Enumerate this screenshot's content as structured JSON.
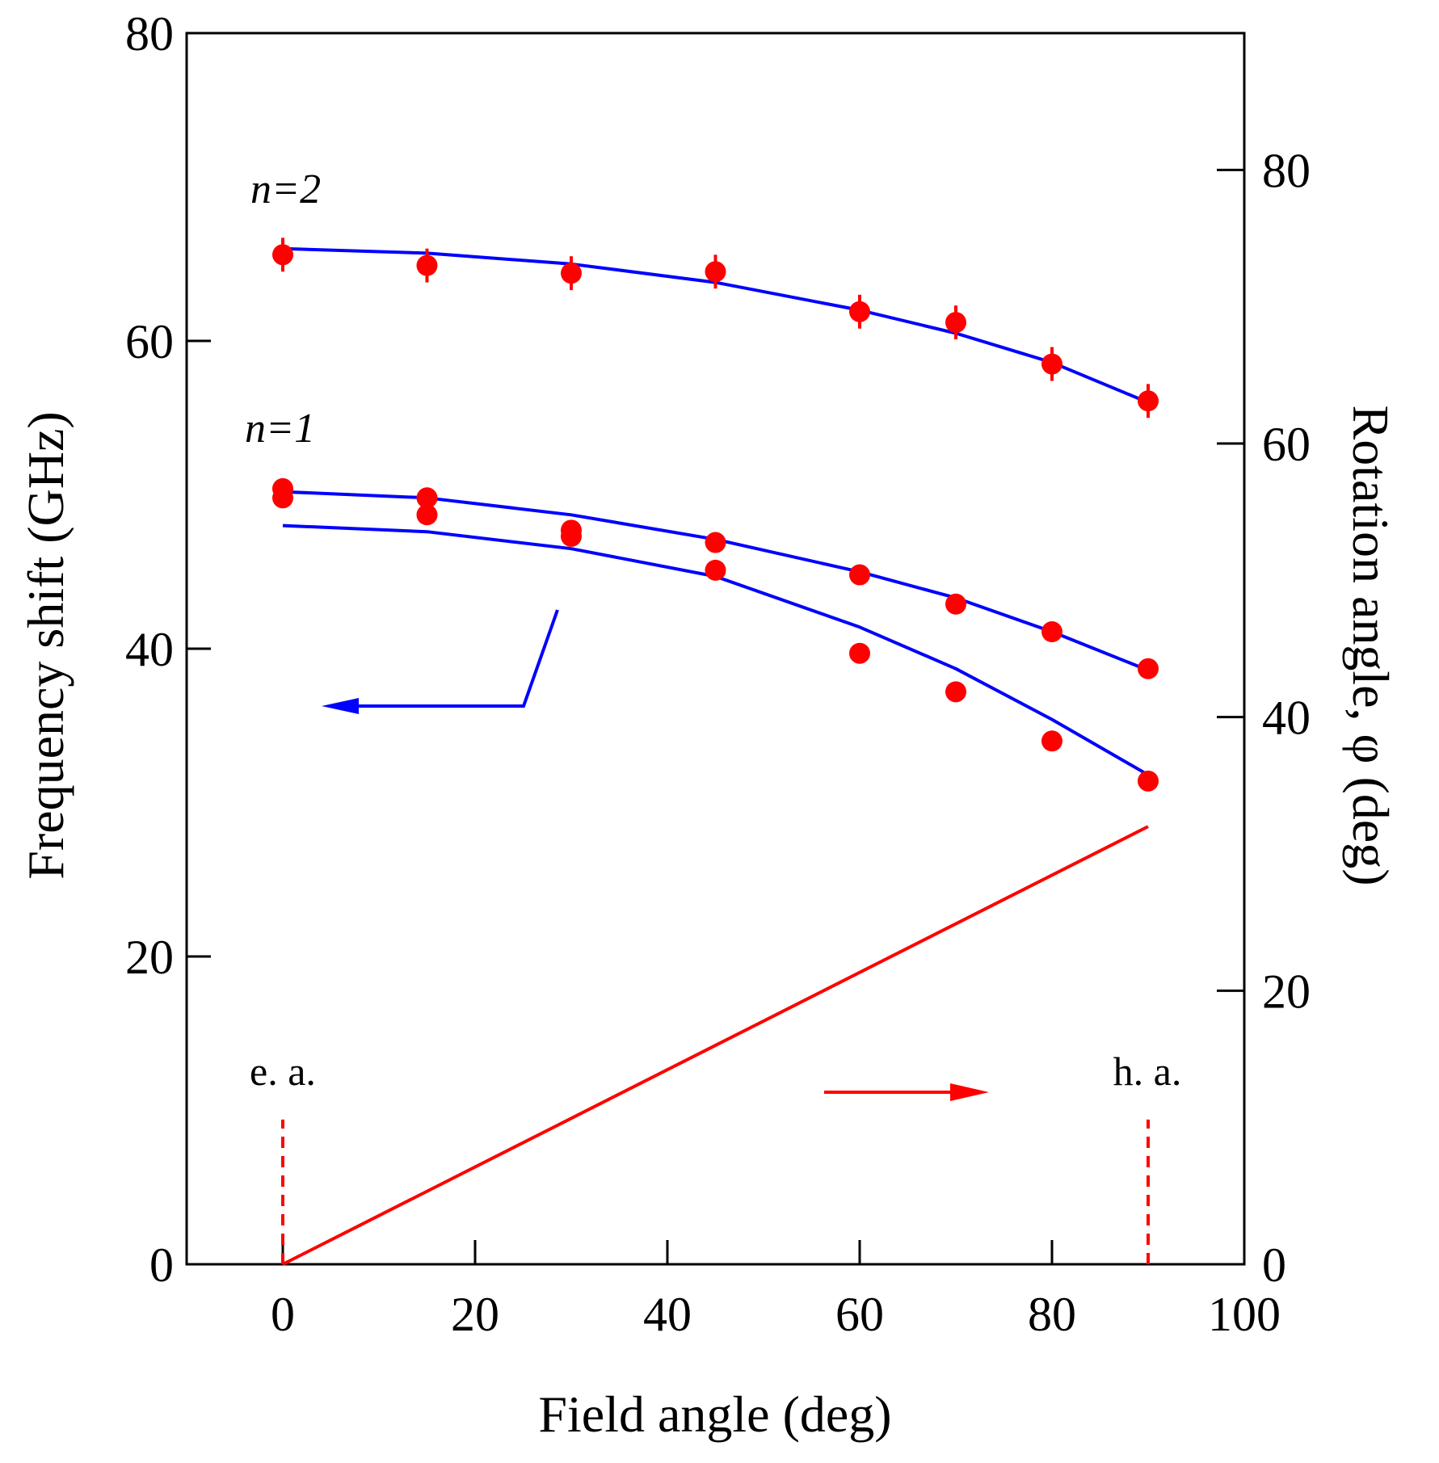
{
  "chart_data": {
    "type": "scatter",
    "title": "",
    "xlabel": "Field angle (deg)",
    "ylabel": "Frequency shift (GHz)",
    "y2label": "Rotation angle, φ (deg)",
    "xlim": [
      -10,
      100
    ],
    "ylim": [
      0,
      80
    ],
    "y2lim": [
      0,
      90
    ],
    "xticks": [
      0,
      20,
      40,
      60,
      80,
      100
    ],
    "yticks": [
      0,
      20,
      40,
      60,
      80
    ],
    "y2ticks": [
      0,
      20,
      40,
      60,
      80
    ],
    "colors": {
      "data": "#ff0000",
      "fit": "#0000ff",
      "rotation": "#ff0000",
      "axis": "#000000"
    },
    "labels": {
      "n2": "n=2",
      "n1": "n=1",
      "ea": "e. a.",
      "ha": "h. a."
    },
    "series": [
      {
        "name": "n=2 data",
        "axis": "left",
        "x": [
          0,
          15,
          30,
          45,
          60,
          70,
          80,
          90
        ],
        "y": [
          65.6,
          64.9,
          64.4,
          64.5,
          61.9,
          61.2,
          58.5,
          56.1
        ],
        "error": [
          1.1,
          1.1,
          1.1,
          1.1,
          1.1,
          1.1,
          1.1,
          1.1
        ]
      },
      {
        "name": "n=1 data (upper branch)",
        "axis": "left",
        "x": [
          0,
          15,
          30,
          45,
          60,
          70,
          80,
          90
        ],
        "y": [
          50.4,
          49.8,
          47.7,
          46.9,
          44.8,
          42.9,
          41.1,
          38.7
        ],
        "error": [
          0.5,
          0.5,
          0.5,
          0.5,
          0.5,
          0.5,
          0.5,
          0.5
        ]
      },
      {
        "name": "n=1 data (lower branch)",
        "axis": "left",
        "x": [
          0,
          15,
          30,
          45,
          60,
          70,
          80,
          90
        ],
        "y": [
          49.8,
          48.7,
          47.3,
          45.1,
          39.7,
          37.2,
          34.0,
          31.4
        ],
        "error": [
          0.5,
          0.5,
          0.5,
          0.5,
          0.5,
          0.5,
          0.5,
          0.5
        ]
      },
      {
        "name": "n=2 fit",
        "axis": "left",
        "x": [
          0,
          15,
          30,
          45,
          60,
          70,
          80,
          90
        ],
        "y": [
          66.0,
          65.7,
          65.0,
          63.8,
          62.0,
          60.5,
          58.6,
          56.0
        ]
      },
      {
        "name": "n=1 fit (upper)",
        "axis": "left",
        "x": [
          0,
          15,
          30,
          45,
          60,
          70,
          80,
          90
        ],
        "y": [
          50.2,
          49.8,
          48.7,
          47.1,
          45.0,
          43.3,
          41.1,
          38.6
        ]
      },
      {
        "name": "n=1 fit (lower)",
        "axis": "left",
        "x": [
          0,
          15,
          30,
          45,
          60,
          70,
          80,
          90
        ],
        "y": [
          48.0,
          47.6,
          46.5,
          44.7,
          41.4,
          38.7,
          35.4,
          31.8
        ]
      },
      {
        "name": "Rotation angle",
        "axis": "right",
        "x": [
          0,
          90
        ],
        "y": [
          0,
          32
        ]
      }
    ]
  }
}
